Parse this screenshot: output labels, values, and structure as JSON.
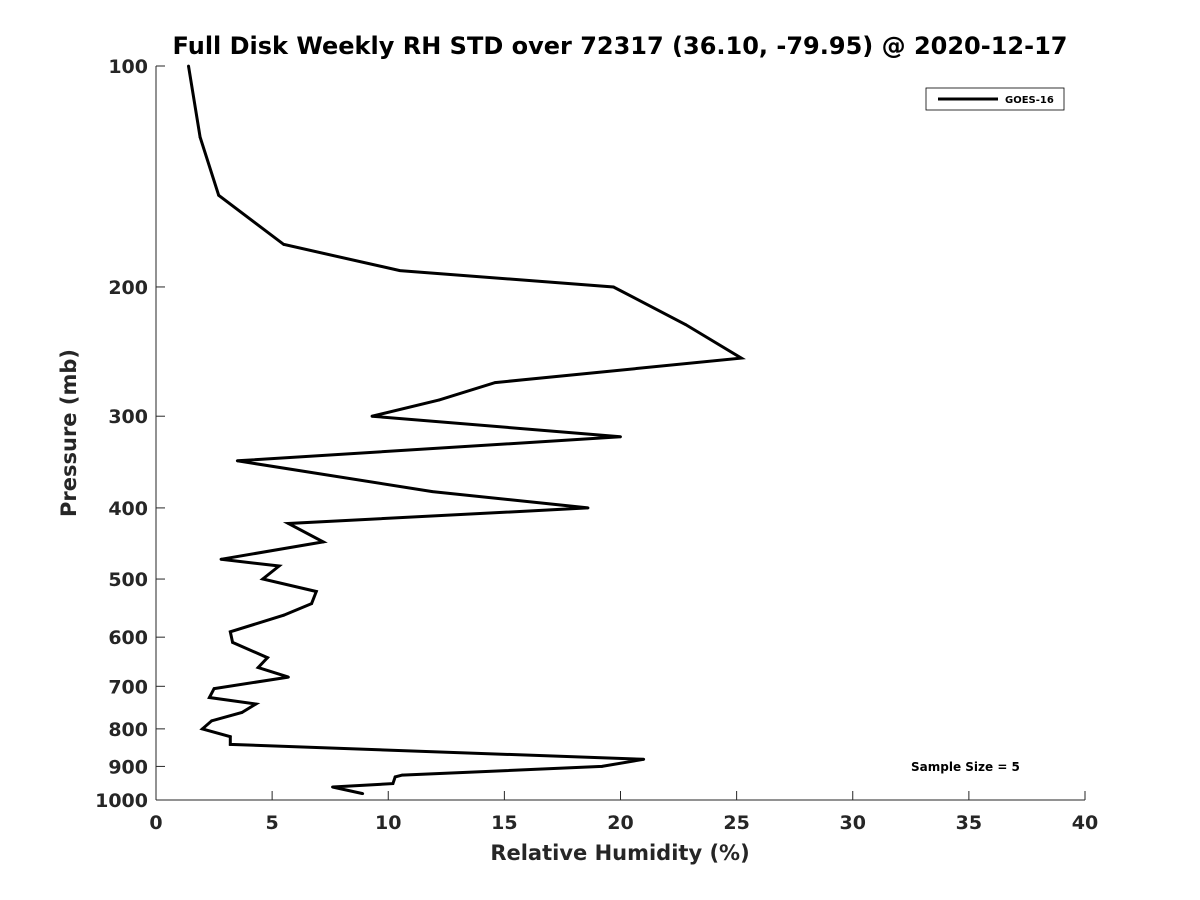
{
  "chart_data": {
    "type": "line",
    "title": "Full Disk Weekly RH STD over 72317 (36.10, -79.95) @ 2020-12-17",
    "xlabel": "Relative Humidity (%)",
    "ylabel": "Pressure (mb)",
    "xlim": [
      0,
      40
    ],
    "ylim": [
      100,
      1000
    ],
    "y_scale": "log",
    "y_reversed": true,
    "grid": false,
    "legend_position": "top-right",
    "x_ticks": [
      "0",
      "5",
      "10",
      "15",
      "20",
      "25",
      "30",
      "35",
      "40"
    ],
    "y_ticks": [
      "100",
      "200",
      "300",
      "400",
      "500",
      "600",
      "700",
      "800",
      "900",
      "1000"
    ],
    "annotation": "Sample Size = 5",
    "series": [
      {
        "name": "GOES-16",
        "color": "#000000",
        "points": [
          [
            1.4,
            100
          ],
          [
            1.9,
            125
          ],
          [
            2.7,
            150
          ],
          [
            5.5,
            175
          ],
          [
            10.5,
            190
          ],
          [
            19.7,
            200
          ],
          [
            22.8,
            225
          ],
          [
            25.2,
            250
          ],
          [
            14.6,
            270
          ],
          [
            12.2,
            285
          ],
          [
            9.3,
            300
          ],
          [
            20.0,
            320
          ],
          [
            3.5,
            345
          ],
          [
            11.9,
            380
          ],
          [
            18.6,
            400
          ],
          [
            5.7,
            420
          ],
          [
            7.2,
            445
          ],
          [
            2.8,
            470
          ],
          [
            5.3,
            480
          ],
          [
            4.6,
            500
          ],
          [
            6.9,
            520
          ],
          [
            6.7,
            540
          ],
          [
            5.5,
            560
          ],
          [
            3.2,
            590
          ],
          [
            3.3,
            610
          ],
          [
            4.8,
            640
          ],
          [
            4.4,
            660
          ],
          [
            5.7,
            680
          ],
          [
            2.5,
            705
          ],
          [
            2.3,
            725
          ],
          [
            4.3,
            740
          ],
          [
            3.7,
            760
          ],
          [
            2.4,
            780
          ],
          [
            2.0,
            800
          ],
          [
            3.2,
            820
          ],
          [
            3.2,
            840
          ],
          [
            21.0,
            880
          ],
          [
            19.2,
            900
          ],
          [
            10.6,
            925
          ],
          [
            10.3,
            930
          ],
          [
            10.2,
            950
          ],
          [
            7.6,
            960
          ],
          [
            8.9,
            980
          ]
        ]
      }
    ]
  }
}
